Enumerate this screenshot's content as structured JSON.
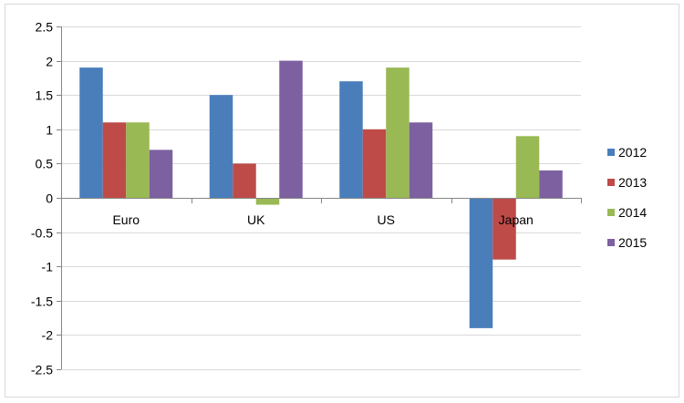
{
  "chart_data": {
    "type": "bar",
    "title": "",
    "xlabel": "",
    "ylabel": "",
    "categories": [
      "Euro",
      "UK",
      "US",
      "Japan"
    ],
    "series": [
      {
        "name": "2012",
        "color": "#4a7ebb",
        "values": [
          1.9,
          1.5,
          1.7,
          -1.9
        ]
      },
      {
        "name": "2013",
        "color": "#be4b48",
        "values": [
          1.1,
          0.5,
          1.0,
          -0.9
        ]
      },
      {
        "name": "2014",
        "color": "#98b954",
        "values": [
          1.1,
          -0.1,
          1.9,
          0.9
        ]
      },
      {
        "name": "2015",
        "color": "#7d60a0",
        "values": [
          0.7,
          2.0,
          1.1,
          0.4
        ]
      }
    ],
    "ylim": [
      -2.5,
      2.5
    ],
    "yticks": [
      2.5,
      2,
      1.5,
      1,
      0.5,
      0,
      -0.5,
      -1,
      -1.5,
      -2,
      -2.5
    ],
    "ytick_labels": [
      "2.5",
      "2",
      "1.5",
      "1",
      "0.5",
      "0",
      "-0.5",
      "-1",
      "-1.5",
      "-2",
      "-2.5"
    ],
    "grid": true,
    "legend_position": "right"
  }
}
